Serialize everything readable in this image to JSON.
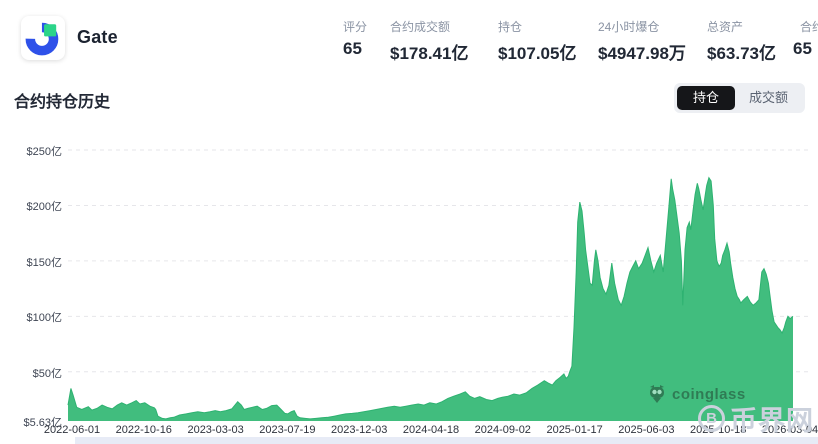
{
  "header": {
    "exchange_name": "Gate",
    "logo": {
      "icon": "gate-logo",
      "blue": "#2e51e9",
      "green": "#2bd489"
    },
    "stats": [
      {
        "label": "评分",
        "value": "65"
      },
      {
        "label": "合约成交额",
        "value": "$178.41亿"
      },
      {
        "label": "持仓",
        "value": "$107.05亿"
      },
      {
        "label": "24小时爆仓",
        "value": "$4947.98万"
      },
      {
        "label": "总资产",
        "value": "$63.73亿"
      },
      {
        "label": "合约",
        "value": "65"
      }
    ]
  },
  "section": {
    "title": "合约持仓历史",
    "toggle": {
      "active_label": "持仓",
      "inactive_label": "成交额"
    }
  },
  "watermarks": {
    "coinglass": "coinglass",
    "bijie_coin_letter": "B",
    "bijie": "币界网"
  },
  "chart_data": {
    "type": "area",
    "title": "合约持仓历史",
    "series_name": "持仓",
    "unit": "亿 USD",
    "color": "#41bd7e",
    "edge_color": "#2eb271",
    "grid_color": "#e6e6ea",
    "grid": "dashed-horizontal",
    "baseline": 5.63,
    "ylim": [
      5.63,
      255
    ],
    "y_axis": [
      {
        "label": "$250亿",
        "value": 250
      },
      {
        "label": "$200亿",
        "value": 200
      },
      {
        "label": "$150亿",
        "value": 150
      },
      {
        "label": "$100亿",
        "value": 100
      },
      {
        "label": "$50亿",
        "value": 50
      },
      {
        "label": "$5.63亿",
        "value": 5.63
      }
    ],
    "x_ticks": [
      "2022-06-01",
      "2022-10-16",
      "2023-03-03",
      "2023-07-19",
      "2023-12-03",
      "2024-04-18",
      "2024-09-02",
      "2025-01-17",
      "2025-06-03",
      "2025-10-18",
      "2026-03-04"
    ],
    "points": [
      [
        0.0,
        20
      ],
      [
        0.004,
        35
      ],
      [
        0.007,
        29
      ],
      [
        0.012,
        18
      ],
      [
        0.019,
        16
      ],
      [
        0.028,
        18.5
      ],
      [
        0.033,
        15.5
      ],
      [
        0.04,
        17
      ],
      [
        0.047,
        20
      ],
      [
        0.054,
        18
      ],
      [
        0.061,
        16.5
      ],
      [
        0.068,
        20
      ],
      [
        0.074,
        22
      ],
      [
        0.081,
        20
      ],
      [
        0.088,
        22
      ],
      [
        0.094,
        24
      ],
      [
        0.099,
        21
      ],
      [
        0.106,
        22
      ],
      [
        0.113,
        19
      ],
      [
        0.119,
        17.5
      ],
      [
        0.121,
        16
      ],
      [
        0.124,
        10
      ],
      [
        0.13,
        8
      ],
      [
        0.135,
        7.5
      ],
      [
        0.141,
        8.5
      ],
      [
        0.146,
        9
      ],
      [
        0.154,
        11
      ],
      [
        0.163,
        12
      ],
      [
        0.171,
        13
      ],
      [
        0.179,
        14
      ],
      [
        0.188,
        13
      ],
      [
        0.196,
        14
      ],
      [
        0.203,
        15
      ],
      [
        0.21,
        14
      ],
      [
        0.218,
        15
      ],
      [
        0.226,
        16.5
      ],
      [
        0.234,
        23
      ],
      [
        0.239,
        20
      ],
      [
        0.243,
        16
      ],
      [
        0.248,
        17
      ],
      [
        0.254,
        18
      ],
      [
        0.261,
        19
      ],
      [
        0.268,
        16
      ],
      [
        0.274,
        17
      ],
      [
        0.281,
        19.5
      ],
      [
        0.288,
        20
      ],
      [
        0.294,
        16
      ],
      [
        0.299,
        12.5
      ],
      [
        0.303,
        12
      ],
      [
        0.308,
        14
      ],
      [
        0.312,
        15
      ],
      [
        0.316,
        10
      ],
      [
        0.32,
        8.5
      ],
      [
        0.327,
        8
      ],
      [
        0.334,
        7.5
      ],
      [
        0.342,
        8
      ],
      [
        0.35,
        8.5
      ],
      [
        0.359,
        9
      ],
      [
        0.367,
        10
      ],
      [
        0.375,
        11
      ],
      [
        0.383,
        12
      ],
      [
        0.392,
        12.5
      ],
      [
        0.4,
        13
      ],
      [
        0.408,
        14
      ],
      [
        0.417,
        15
      ],
      [
        0.425,
        16
      ],
      [
        0.433,
        17
      ],
      [
        0.441,
        18
      ],
      [
        0.45,
        19
      ],
      [
        0.458,
        18
      ],
      [
        0.466,
        19
      ],
      [
        0.474,
        20
      ],
      [
        0.483,
        21
      ],
      [
        0.491,
        20
      ],
      [
        0.499,
        22
      ],
      [
        0.508,
        21
      ],
      [
        0.516,
        23
      ],
      [
        0.524,
        26
      ],
      [
        0.532,
        28
      ],
      [
        0.541,
        30
      ],
      [
        0.548,
        32
      ],
      [
        0.554,
        28
      ],
      [
        0.561,
        26
      ],
      [
        0.568,
        27.5
      ],
      [
        0.577,
        25
      ],
      [
        0.585,
        24
      ],
      [
        0.593,
        26
      ],
      [
        0.599,
        27
      ],
      [
        0.607,
        28
      ],
      [
        0.615,
        30
      ],
      [
        0.623,
        29
      ],
      [
        0.632,
        31
      ],
      [
        0.64,
        35
      ],
      [
        0.648,
        38
      ],
      [
        0.657,
        42
      ],
      [
        0.662,
        40
      ],
      [
        0.668,
        38
      ],
      [
        0.673,
        42
      ],
      [
        0.679,
        45
      ],
      [
        0.684,
        48
      ],
      [
        0.687,
        44
      ],
      [
        0.69,
        46
      ],
      [
        0.692,
        50
      ],
      [
        0.695,
        55
      ],
      [
        0.698,
        90
      ],
      [
        0.701,
        140
      ],
      [
        0.703,
        185
      ],
      [
        0.706,
        203
      ],
      [
        0.709,
        195
      ],
      [
        0.712,
        175
      ],
      [
        0.714,
        160
      ],
      [
        0.717,
        145
      ],
      [
        0.72,
        130
      ],
      [
        0.723,
        128
      ],
      [
        0.726,
        150
      ],
      [
        0.728,
        160
      ],
      [
        0.731,
        150
      ],
      [
        0.734,
        135
      ],
      [
        0.738,
        125
      ],
      [
        0.742,
        120
      ],
      [
        0.746,
        128
      ],
      [
        0.75,
        148
      ],
      [
        0.754,
        130
      ],
      [
        0.759,
        115
      ],
      [
        0.763,
        110
      ],
      [
        0.767,
        118
      ],
      [
        0.771,
        130
      ],
      [
        0.775,
        140
      ],
      [
        0.779,
        145
      ],
      [
        0.783,
        150
      ],
      [
        0.787,
        143
      ],
      [
        0.792,
        148
      ],
      [
        0.796,
        155
      ],
      [
        0.8,
        162
      ],
      [
        0.804,
        150
      ],
      [
        0.808,
        140
      ],
      [
        0.812,
        148
      ],
      [
        0.817,
        155
      ],
      [
        0.821,
        140
      ],
      [
        0.825,
        170
      ],
      [
        0.829,
        200
      ],
      [
        0.832,
        224
      ],
      [
        0.834,
        215
      ],
      [
        0.837,
        205
      ],
      [
        0.84,
        190
      ],
      [
        0.843,
        175
      ],
      [
        0.846,
        150
      ],
      [
        0.848,
        110
      ],
      [
        0.851,
        160
      ],
      [
        0.854,
        180
      ],
      [
        0.857,
        185
      ],
      [
        0.859,
        178
      ],
      [
        0.862,
        195
      ],
      [
        0.865,
        210
      ],
      [
        0.868,
        220
      ],
      [
        0.87,
        215
      ],
      [
        0.873,
        205
      ],
      [
        0.876,
        196
      ],
      [
        0.879,
        210
      ],
      [
        0.881,
        218
      ],
      [
        0.884,
        225
      ],
      [
        0.887,
        222
      ],
      [
        0.89,
        200
      ],
      [
        0.892,
        170
      ],
      [
        0.895,
        150
      ],
      [
        0.898,
        145
      ],
      [
        0.901,
        148
      ],
      [
        0.903,
        155
      ],
      [
        0.906,
        160
      ],
      [
        0.909,
        166
      ],
      [
        0.912,
        158
      ],
      [
        0.914,
        148
      ],
      [
        0.917,
        135
      ],
      [
        0.92,
        125
      ],
      [
        0.923,
        118
      ],
      [
        0.926,
        115
      ],
      [
        0.928,
        112
      ],
      [
        0.932,
        115
      ],
      [
        0.937,
        118
      ],
      [
        0.941,
        113
      ],
      [
        0.945,
        110
      ],
      [
        0.949,
        112
      ],
      [
        0.953,
        115
      ],
      [
        0.957,
        140
      ],
      [
        0.96,
        143
      ],
      [
        0.963,
        138
      ],
      [
        0.966,
        130
      ],
      [
        0.968,
        120
      ],
      [
        0.971,
        105
      ],
      [
        0.974,
        95
      ],
      [
        0.977,
        92
      ],
      [
        0.979,
        90
      ],
      [
        0.982,
        88
      ],
      [
        0.985,
        85
      ],
      [
        0.988,
        90
      ],
      [
        0.99,
        95
      ],
      [
        0.993,
        100
      ],
      [
        0.996,
        98
      ],
      [
        1.0,
        100
      ]
    ]
  }
}
